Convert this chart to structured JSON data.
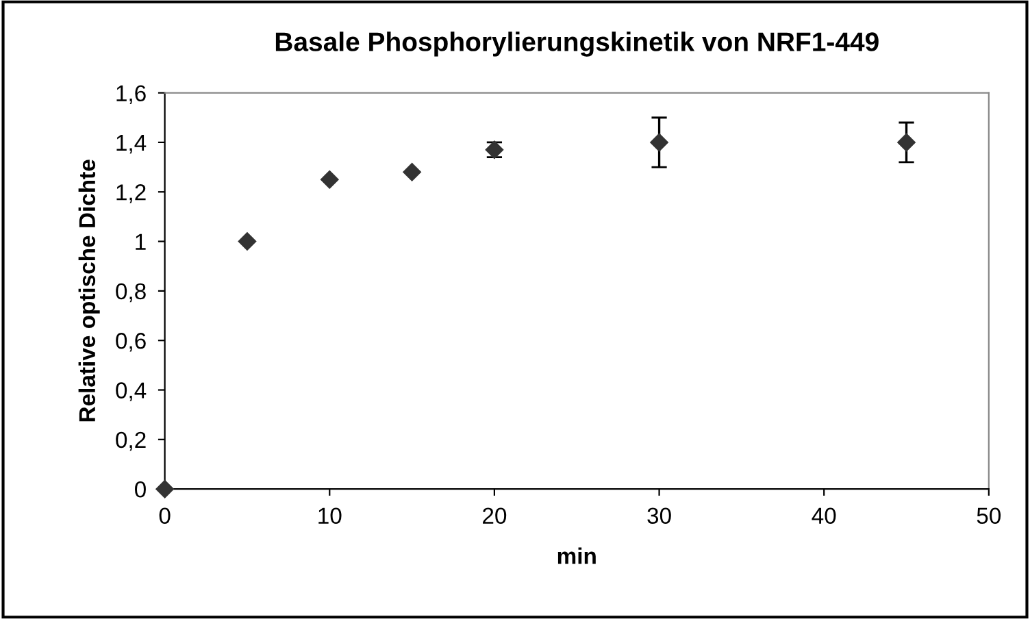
{
  "chart_data": {
    "type": "scatter",
    "title": "Basale Phosphorylierungskinetik von NRF1-449",
    "xlabel": "min",
    "ylabel": "Relative optische Dichte",
    "x": [
      0,
      5,
      10,
      15,
      20,
      30,
      45
    ],
    "series": [
      {
        "color": "#333333",
        "values": [
          0,
          1.0,
          1.25,
          1.28,
          1.37,
          1.4,
          1.4
        ],
        "errors": [
          null,
          null,
          null,
          null,
          0.03,
          0.1,
          0.08
        ]
      }
    ],
    "marker": "diamond",
    "grid": false,
    "legend": false,
    "xlim": [
      0,
      50
    ],
    "xticks": [
      0,
      10,
      20,
      30,
      40,
      50
    ],
    "ylim": [
      0,
      1.6
    ],
    "yticks": [
      0,
      {
        "value": 0.2,
        "label": "0,2"
      },
      {
        "value": 0.4,
        "label": "0,4"
      },
      {
        "value": 0.6,
        "label": "0,6"
      },
      {
        "value": 0.8,
        "label": "0,8"
      },
      1,
      {
        "value": 1.2,
        "label": "1,2"
      },
      {
        "value": 1.4,
        "label": "1,4"
      },
      {
        "value": 1.6,
        "label": "1,6"
      }
    ]
  }
}
